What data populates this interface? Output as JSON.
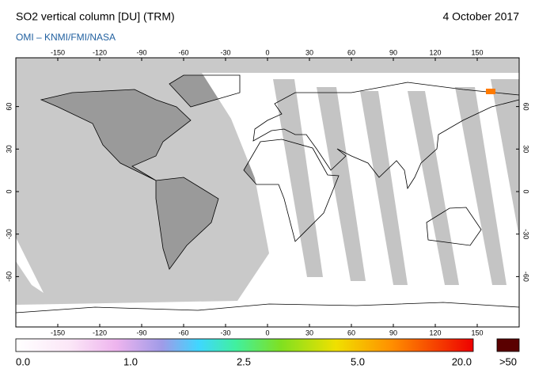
{
  "header": {
    "title": "SO2 vertical column [DU] (TRM)",
    "date": "4 October 2017",
    "source": "OMI  –  KNMI/FMI/NASA"
  },
  "map": {
    "lon_ticks": [
      -150,
      -120,
      -90,
      -60,
      -30,
      0,
      30,
      60,
      90,
      120,
      150
    ],
    "lat_ticks": [
      60,
      30,
      0,
      -30,
      -60
    ]
  },
  "colorbar": {
    "labels": [
      "0.0",
      "1.0",
      "2.5",
      "5.0",
      "20.0"
    ],
    "overflow_label": ">50"
  }
}
